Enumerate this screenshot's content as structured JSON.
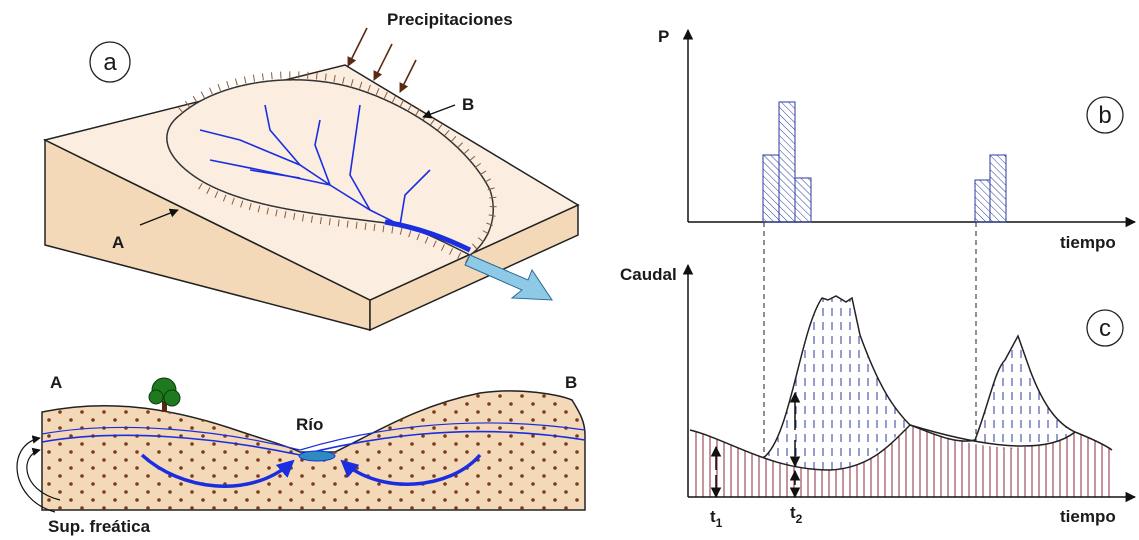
{
  "panel_a": {
    "label": "a",
    "rain_label": "Precipitaciones",
    "point_a": "A",
    "point_b": "B"
  },
  "cross_section": {
    "left": "A",
    "right": "B",
    "river": "Río",
    "water_table": "Sup. freática"
  },
  "panel_b": {
    "label": "b",
    "y_axis": "P",
    "x_axis": "tiempo"
  },
  "panel_c": {
    "label": "c",
    "y_axis": "Caudal",
    "x_axis": "tiempo",
    "t1": {
      "base": "t",
      "sub": "1"
    },
    "t2": {
      "base": "t",
      "sub": "2"
    }
  }
}
